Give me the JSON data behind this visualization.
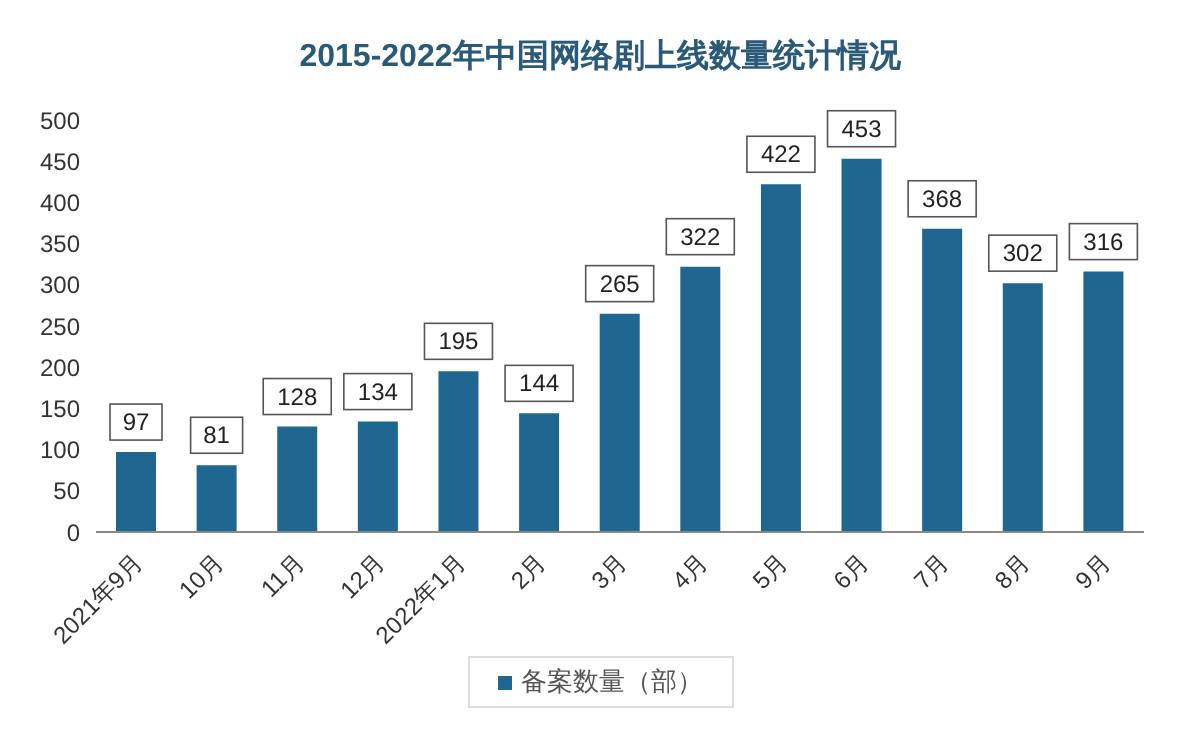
{
  "chart_data": {
    "type": "bar",
    "title": "2015-2022年中国网络剧上线数量统计情况",
    "categories": [
      "2021年9月",
      "10月",
      "11月",
      "12月",
      "2022年1月",
      "2月",
      "3月",
      "4月",
      "5月",
      "6月",
      "7月",
      "8月",
      "9月"
    ],
    "series": [
      {
        "name": "备案数量（部）",
        "color": "#1f6690",
        "values": [
          97,
          81,
          128,
          134,
          195,
          144,
          265,
          322,
          422,
          453,
          368,
          302,
          316
        ]
      }
    ],
    "ylim": [
      0,
      500
    ],
    "yticks": [
      0,
      50,
      100,
      150,
      200,
      250,
      300,
      350,
      400,
      450,
      500
    ],
    "grid": false,
    "legend": "bottom",
    "data_labels": true
  }
}
